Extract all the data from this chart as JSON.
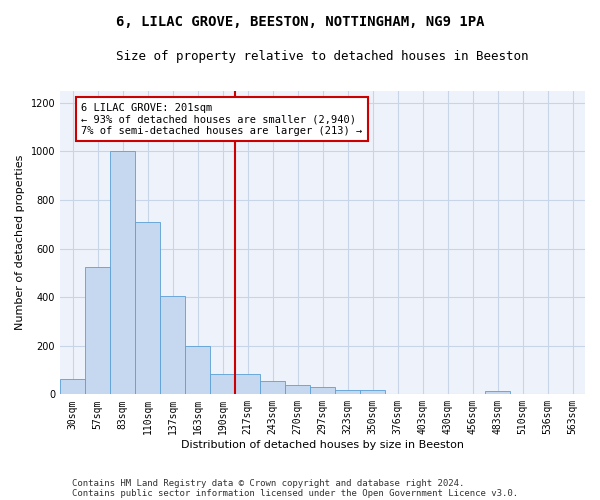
{
  "title": "6, LILAC GROVE, BEESTON, NOTTINGHAM, NG9 1PA",
  "subtitle": "Size of property relative to detached houses in Beeston",
  "xlabel": "Distribution of detached houses by size in Beeston",
  "ylabel": "Number of detached properties",
  "footer1": "Contains HM Land Registry data © Crown copyright and database right 2024.",
  "footer2": "Contains public sector information licensed under the Open Government Licence v3.0.",
  "bar_labels": [
    "30sqm",
    "57sqm",
    "83sqm",
    "110sqm",
    "137sqm",
    "163sqm",
    "190sqm",
    "217sqm",
    "243sqm",
    "270sqm",
    "297sqm",
    "323sqm",
    "350sqm",
    "376sqm",
    "403sqm",
    "430sqm",
    "456sqm",
    "483sqm",
    "510sqm",
    "536sqm",
    "563sqm"
  ],
  "bar_values": [
    65,
    525,
    1000,
    710,
    405,
    200,
    85,
    85,
    55,
    38,
    30,
    18,
    18,
    0,
    0,
    0,
    0,
    12,
    0,
    0,
    0
  ],
  "bar_color": "#c5d8f0",
  "bar_edge_color": "#5a9fd4",
  "vline_x_index": 7,
  "vline_color": "#cc0000",
  "annotation_text": "6 LILAC GROVE: 201sqm\n← 93% of detached houses are smaller (2,940)\n7% of semi-detached houses are larger (213) →",
  "annotation_box_color": "#cc0000",
  "ylim": [
    0,
    1250
  ],
  "yticks": [
    0,
    200,
    400,
    600,
    800,
    1000,
    1200
  ],
  "bg_color": "#eef2fa",
  "grid_color": "#c8d4e8",
  "title_fontsize": 10,
  "subtitle_fontsize": 9,
  "axis_label_fontsize": 8,
  "tick_fontsize": 7,
  "annotation_fontsize": 7.5,
  "footer_fontsize": 6.5
}
